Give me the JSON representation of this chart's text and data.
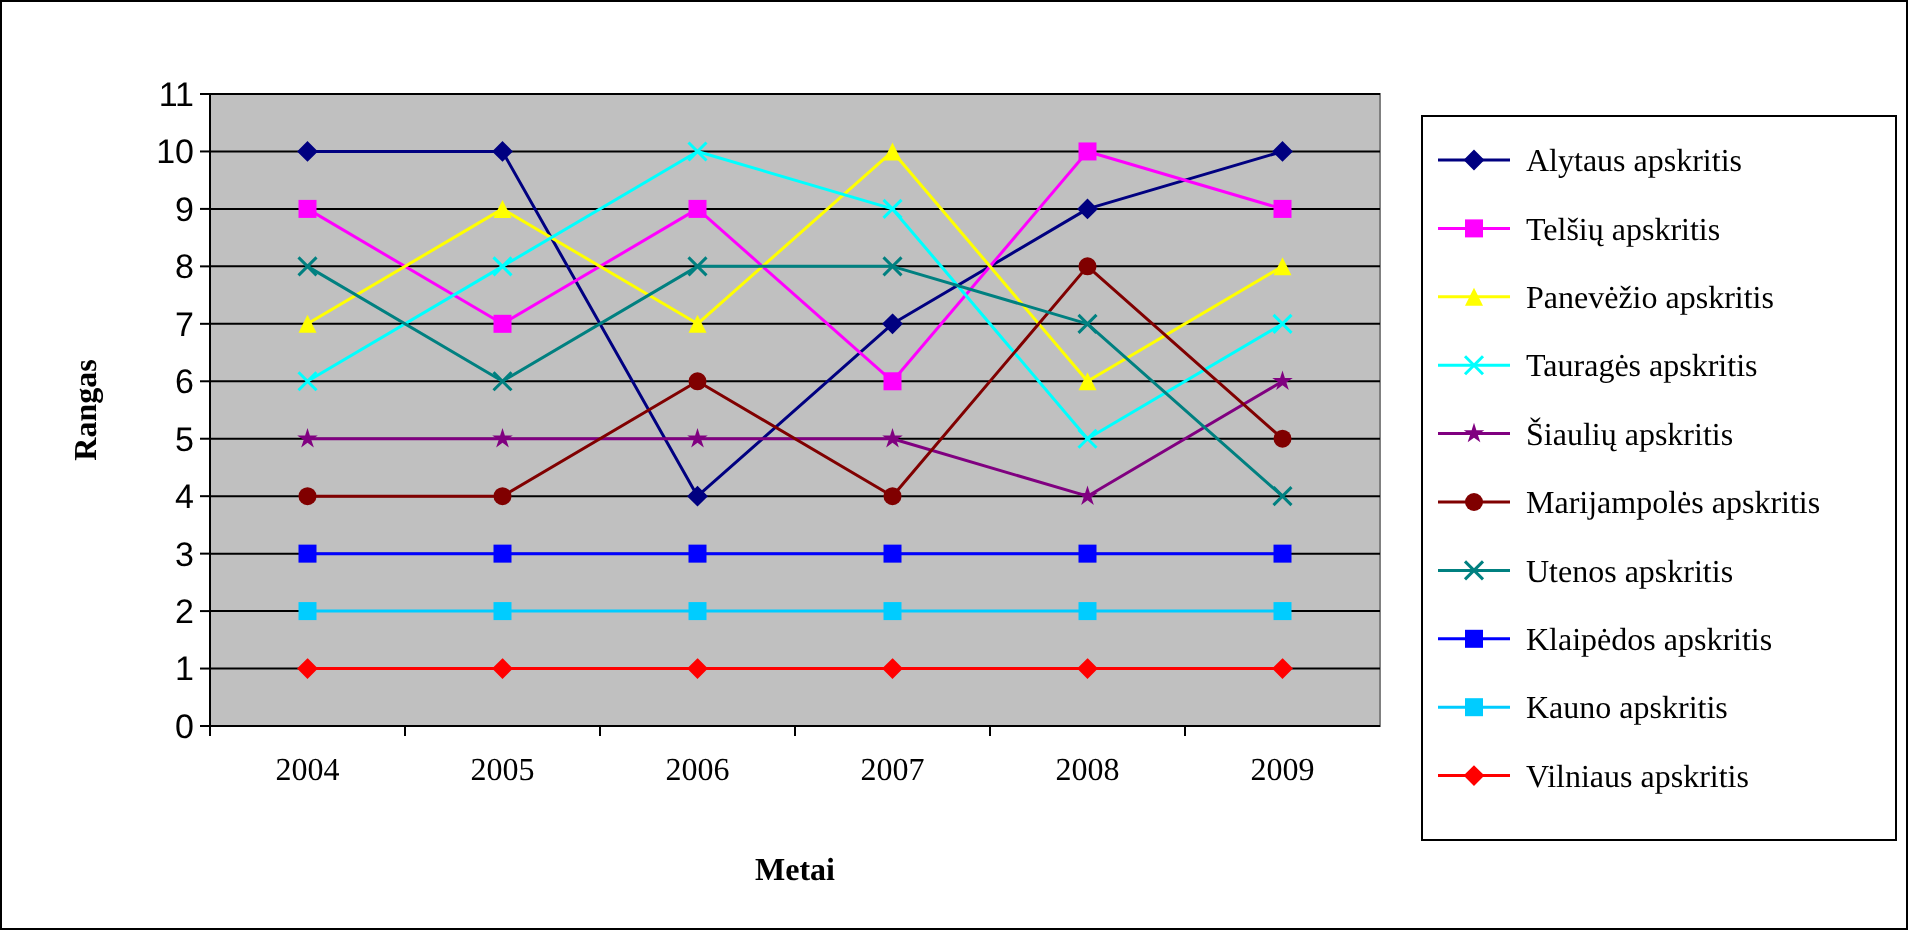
{
  "chart_data": {
    "type": "line",
    "xlabel": "Metai",
    "ylabel": "Rangas",
    "categories": [
      "2004",
      "2005",
      "2006",
      "2007",
      "2008",
      "2009"
    ],
    "ylim": [
      0,
      11
    ],
    "yticks": [
      0,
      1,
      2,
      3,
      4,
      5,
      6,
      7,
      8,
      9,
      10,
      11
    ],
    "grid": "y",
    "legend": "right",
    "line_style": "solid",
    "series": [
      {
        "name": "Alytaus apskritis",
        "color": "#000080",
        "marker": "diamond",
        "values": [
          10,
          10,
          4,
          7,
          9,
          10
        ]
      },
      {
        "name": "Telšių apskritis",
        "color": "#ff00ff",
        "marker": "square",
        "values": [
          9,
          7,
          9,
          6,
          10,
          9
        ]
      },
      {
        "name": "Panevėžio apskritis",
        "color": "#ffff00",
        "marker": "triangle",
        "values": [
          7,
          9,
          7,
          10,
          6,
          8
        ]
      },
      {
        "name": "Tauragės apskritis",
        "color": "#00ffff",
        "marker": "cross",
        "values": [
          6,
          8,
          10,
          9,
          5,
          7
        ]
      },
      {
        "name": "Šiaulių apskritis",
        "color": "#800080",
        "marker": "star",
        "values": [
          5,
          5,
          5,
          5,
          4,
          6
        ]
      },
      {
        "name": "Marijampolės apskritis",
        "color": "#800000",
        "marker": "circle",
        "values": [
          4,
          4,
          6,
          4,
          8,
          5
        ]
      },
      {
        "name": "Utenos apskritis",
        "color": "#008080",
        "marker": "cross",
        "values": [
          8,
          6,
          8,
          8,
          7,
          4
        ]
      },
      {
        "name": "Klaipėdos apskritis",
        "color": "#0000ff",
        "marker": "square",
        "values": [
          3,
          3,
          3,
          3,
          3,
          3
        ]
      },
      {
        "name": "Kauno apskritis",
        "color": "#00ccff",
        "marker": "square",
        "values": [
          2,
          2,
          2,
          2,
          2,
          2
        ]
      },
      {
        "name": "Vilniaus apskritis",
        "color": "#ff0000",
        "marker": "diamond",
        "values": [
          1,
          1,
          1,
          1,
          1,
          1
        ]
      }
    ]
  }
}
